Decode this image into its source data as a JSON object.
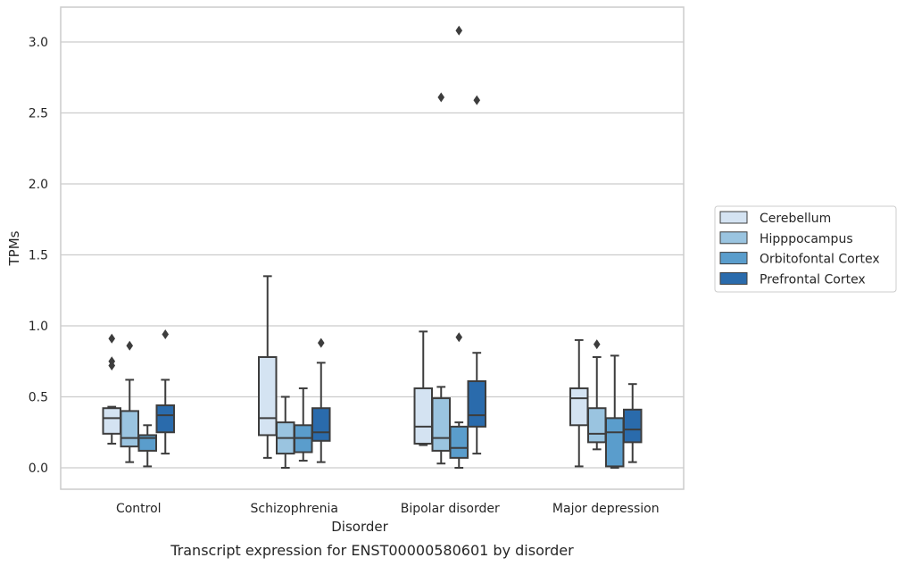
{
  "caption": "Transcript expression for ENST00000580601 by disorder",
  "chart_data": {
    "type": "box",
    "xlabel": "Disorder",
    "ylabel": "TPMs",
    "ylim": [
      -0.15,
      3.25
    ],
    "yticks": [
      "0.0",
      "0.5",
      "1.0",
      "1.5",
      "2.0",
      "2.5",
      "3.0"
    ],
    "grid": "horizontal",
    "legend_position": "right",
    "categories": [
      "Control",
      "Schizophrenia",
      "Bipolar disorder",
      "Major depression"
    ],
    "series": [
      {
        "name": "Cerebellum",
        "color": "#d4e3f2",
        "boxes": [
          {
            "whislo": 0.17,
            "q1": 0.24,
            "med": 0.35,
            "q3": 0.42,
            "whishi": 0.43,
            "fliers": [
              0.91,
              0.75,
              0.72
            ]
          },
          {
            "whislo": 0.07,
            "q1": 0.23,
            "med": 0.35,
            "q3": 0.78,
            "whishi": 1.35,
            "fliers": []
          },
          {
            "whislo": 0.16,
            "q1": 0.17,
            "med": 0.29,
            "q3": 0.56,
            "whishi": 0.96,
            "fliers": []
          },
          {
            "whislo": 0.01,
            "q1": 0.3,
            "med": 0.49,
            "q3": 0.56,
            "whishi": 0.9,
            "fliers": []
          }
        ]
      },
      {
        "name": "Hipppocampus",
        "color": "#9ac4e0",
        "boxes": [
          {
            "whislo": 0.04,
            "q1": 0.15,
            "med": 0.21,
            "q3": 0.4,
            "whishi": 0.62,
            "fliers": [
              0.86
            ]
          },
          {
            "whislo": 0.0,
            "q1": 0.1,
            "med": 0.21,
            "q3": 0.32,
            "whishi": 0.5,
            "fliers": []
          },
          {
            "whislo": 0.03,
            "q1": 0.12,
            "med": 0.21,
            "q3": 0.49,
            "whishi": 0.57,
            "fliers": [
              2.61
            ]
          },
          {
            "whislo": 0.13,
            "q1": 0.18,
            "med": 0.24,
            "q3": 0.42,
            "whishi": 0.78,
            "fliers": [
              0.87
            ]
          }
        ]
      },
      {
        "name": "Orbitofontal Cortex",
        "color": "#5a9dcc",
        "boxes": [
          {
            "whislo": 0.01,
            "q1": 0.12,
            "med": 0.21,
            "q3": 0.23,
            "whishi": 0.3,
            "fliers": []
          },
          {
            "whislo": 0.05,
            "q1": 0.11,
            "med": 0.21,
            "q3": 0.3,
            "whishi": 0.56,
            "fliers": []
          },
          {
            "whislo": 0.0,
            "q1": 0.07,
            "med": 0.14,
            "q3": 0.29,
            "whishi": 0.32,
            "fliers": [
              0.92,
              3.08
            ]
          },
          {
            "whislo": 0.0,
            "q1": 0.01,
            "med": 0.25,
            "q3": 0.35,
            "whishi": 0.79,
            "fliers": []
          }
        ]
      },
      {
        "name": "Prefrontal Cortex",
        "color": "#2a6bac",
        "boxes": [
          {
            "whislo": 0.1,
            "q1": 0.25,
            "med": 0.37,
            "q3": 0.44,
            "whishi": 0.62,
            "fliers": [
              0.94
            ]
          },
          {
            "whislo": 0.04,
            "q1": 0.19,
            "med": 0.25,
            "q3": 0.42,
            "whishi": 0.74,
            "fliers": [
              0.88
            ]
          },
          {
            "whislo": 0.1,
            "q1": 0.29,
            "med": 0.37,
            "q3": 0.61,
            "whishi": 0.81,
            "fliers": [
              2.59
            ]
          },
          {
            "whislo": 0.04,
            "q1": 0.18,
            "med": 0.27,
            "q3": 0.41,
            "whishi": 0.59,
            "fliers": []
          }
        ]
      }
    ]
  }
}
